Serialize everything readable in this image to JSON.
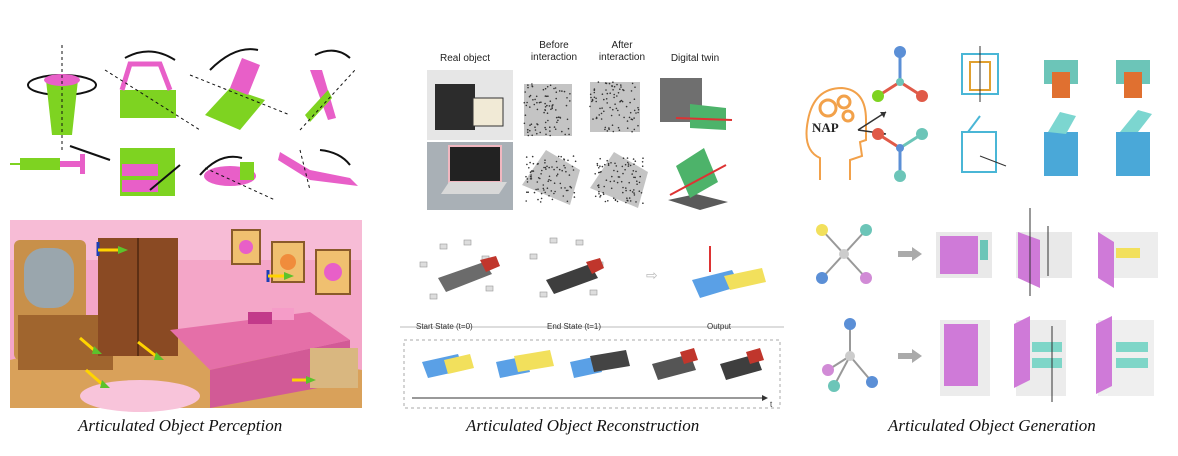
{
  "panels": {
    "perception": {
      "caption": "Articulated Object Perception"
    },
    "reconstruction": {
      "caption": "Articulated Object Reconstruction",
      "headers": [
        "Real object",
        "Before interaction",
        "After interaction",
        "Digital twin"
      ],
      "timeline": {
        "start": "Start State (t=0)",
        "end": "End State (t=1)",
        "output": "Output",
        "axis": "t"
      }
    },
    "generation": {
      "caption": "Articulated Object Generation",
      "badge": "NAP"
    }
  },
  "colors": {
    "pink": "#e85fc8",
    "green": "#7ed321",
    "room_bg": "#f4a6c8",
    "blue_node": "#5b8fd6",
    "teal_node": "#6cc5b8",
    "red_node": "#e05a48",
    "gear": "#f2a14a"
  }
}
